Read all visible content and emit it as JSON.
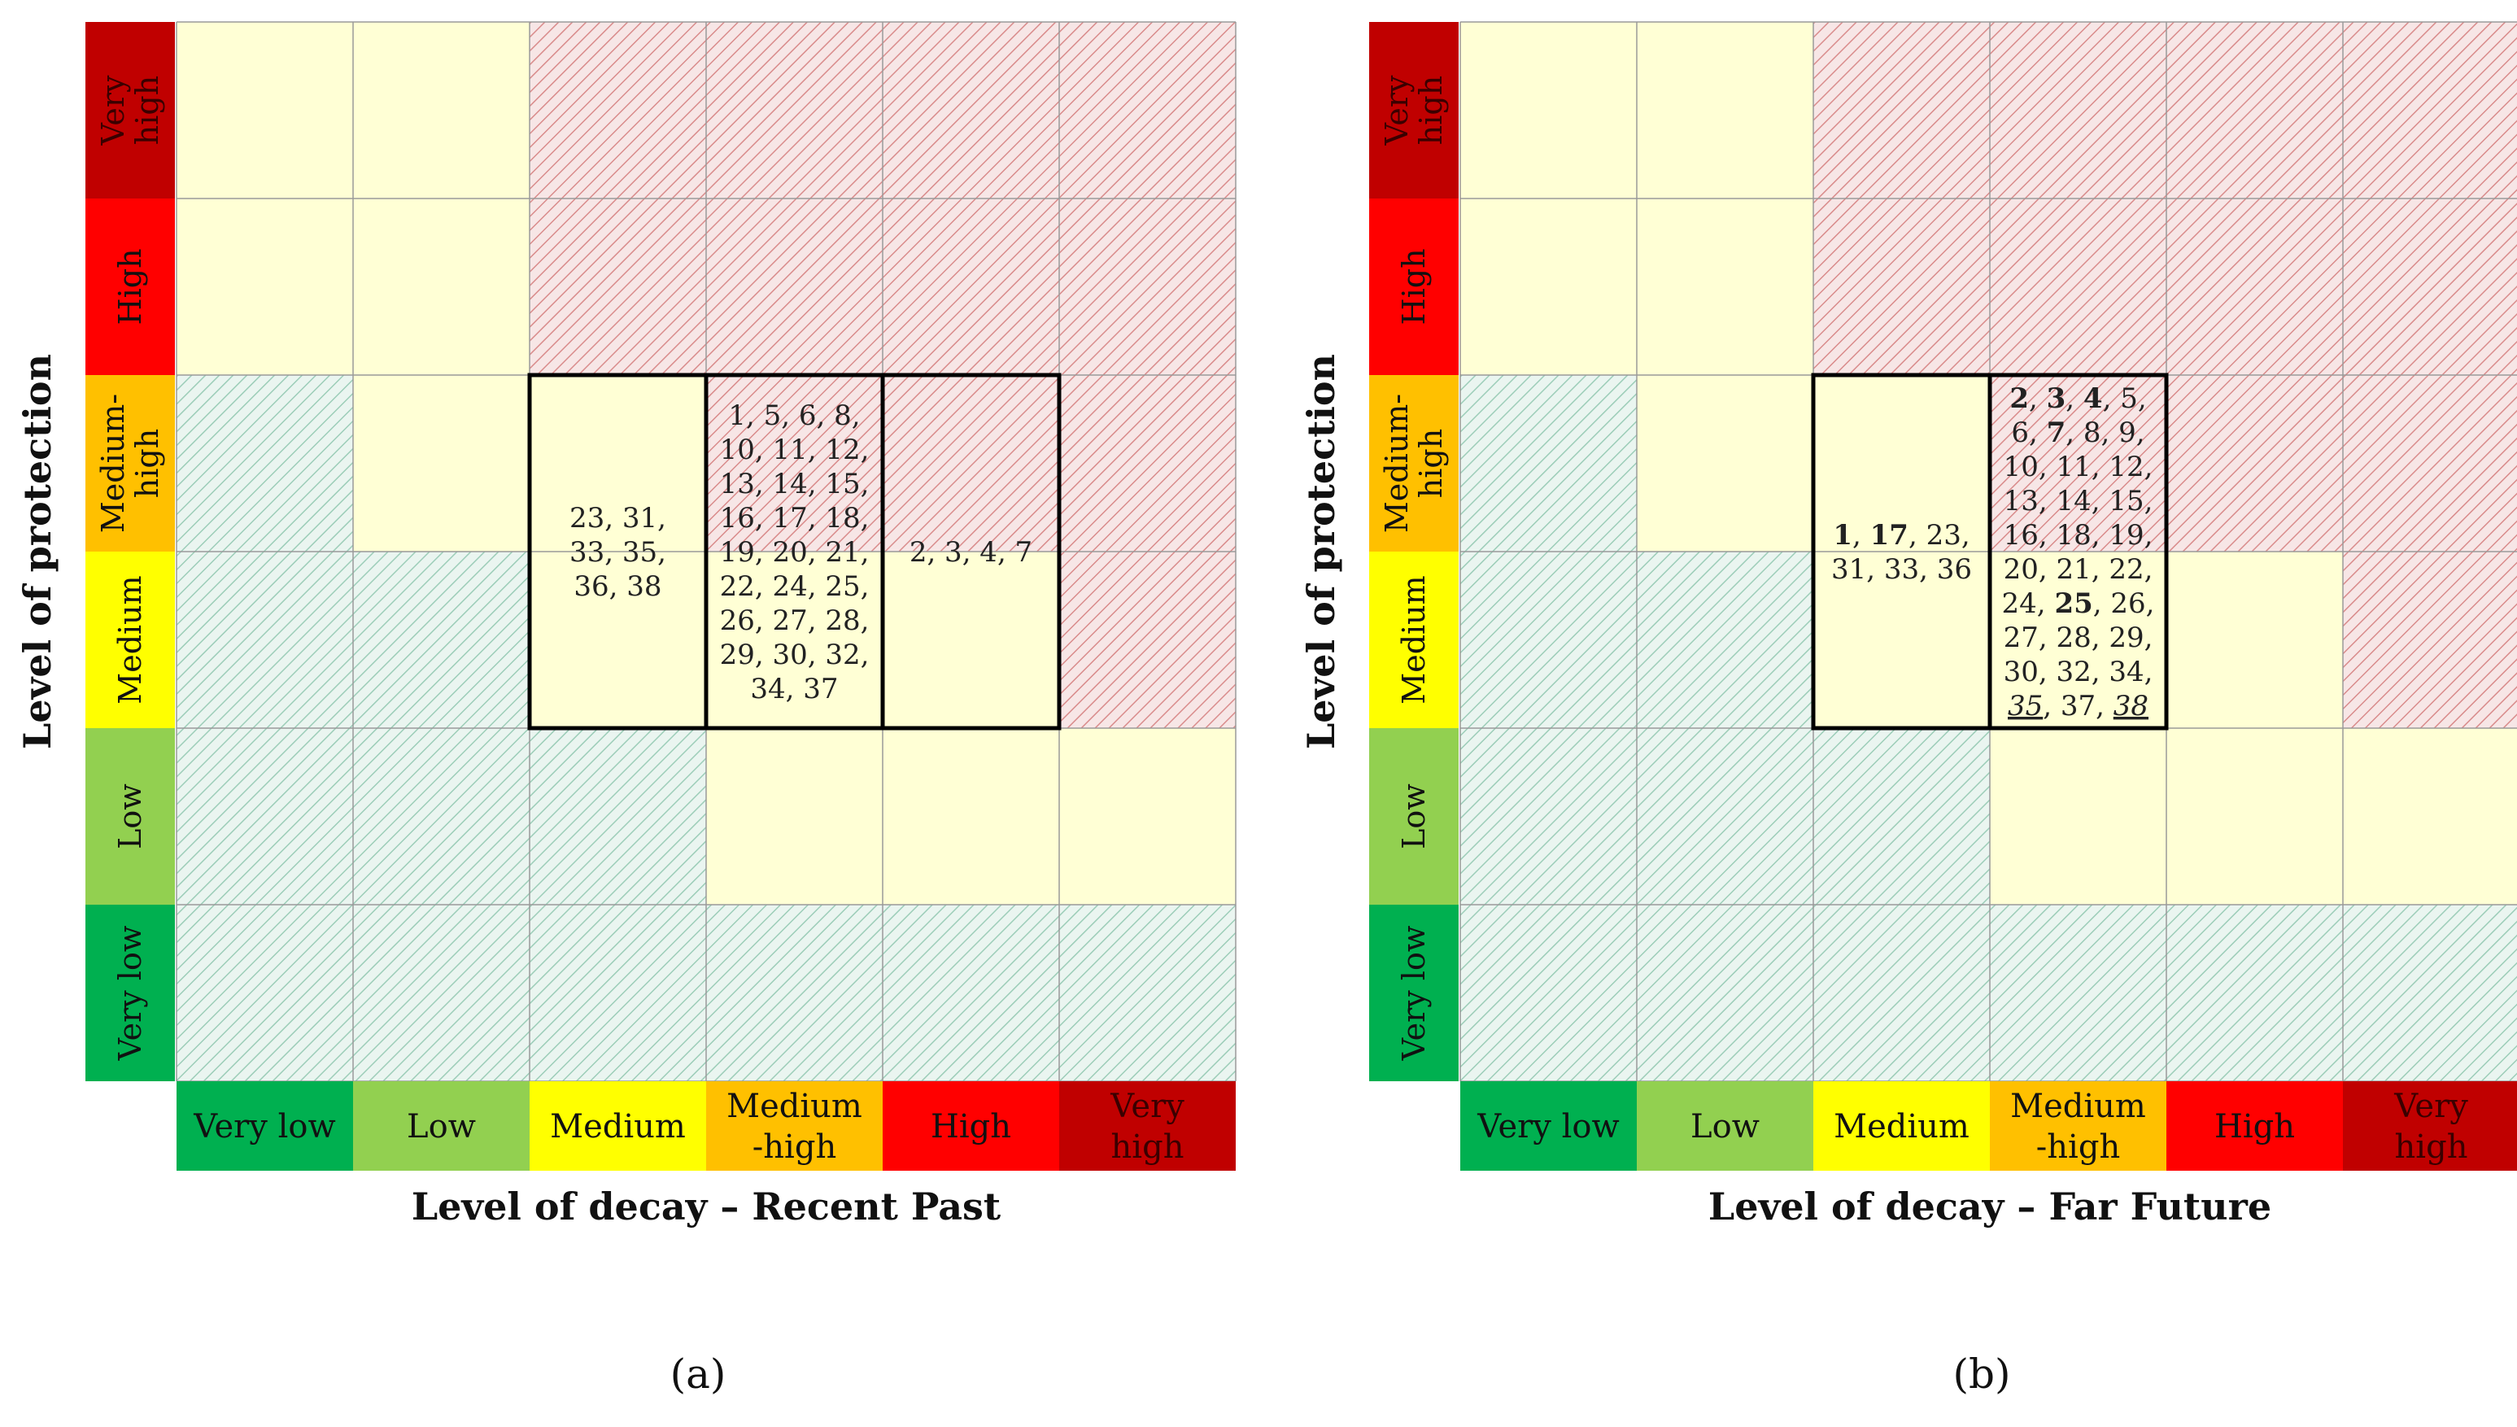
{
  "colors": {
    "very_low": "#00b050",
    "low": "#92d050",
    "medium": "#ffff00",
    "medium_high": "#ffc000",
    "high": "#ff0000",
    "very_high": "#c00000",
    "cream": "#ffffd5",
    "pink": "#f4dada",
    "teal": "#dcefe8"
  },
  "row_labels": [
    "Very high",
    "High",
    "Medium-high",
    "Medium",
    "Low",
    "Very low"
  ],
  "chart_data": [
    {
      "type": "heatmap",
      "panel_label": "(a)",
      "xlabel": "Level of decay – Recent Past",
      "ylabel": "Level of protection",
      "x_categories": [
        "Very low",
        "Low",
        "Medium",
        "Medium-high",
        "High",
        "Very high"
      ],
      "y_categories": [
        "Very low",
        "Low",
        "Medium",
        "Medium-high",
        "High",
        "Very high"
      ],
      "x_tick_lines": [
        [
          "Very low"
        ],
        [
          "Low"
        ],
        [
          "Medium"
        ],
        [
          "Medium",
          "-high"
        ],
        [
          "High"
        ],
        [
          "Very",
          "high"
        ]
      ],
      "y_tick_lines": [
        [
          "Very",
          "high"
        ],
        [
          "High"
        ],
        [
          "Medium-",
          "high"
        ],
        [
          "Medium"
        ],
        [
          "Low"
        ],
        [
          "Very low"
        ]
      ],
      "zones_top_to_bottom": [
        [
          "cream",
          "cream",
          "pink",
          "pink",
          "pink",
          "pink"
        ],
        [
          "cream",
          "cream",
          "pink",
          "pink",
          "pink",
          "pink"
        ],
        [
          "teal",
          "cream",
          "cream",
          "pink",
          "pink",
          "pink"
        ],
        [
          "teal",
          "teal",
          "cream",
          "cream",
          "cream",
          "pink"
        ],
        [
          "teal",
          "teal",
          "teal",
          "cream",
          "cream",
          "cream"
        ],
        [
          "teal",
          "teal",
          "teal",
          "teal",
          "teal",
          "teal"
        ]
      ],
      "groups": [
        {
          "decay": "Medium",
          "protection": "Medium to Medium-high",
          "lines": [
            [
              {
                "t": "23, 31,"
              }
            ],
            [
              {
                "t": "33, 35,"
              }
            ],
            [
              {
                "t": "36, 38"
              }
            ]
          ]
        },
        {
          "decay": "Medium-high",
          "protection": "Medium to Medium-high",
          "lines": [
            [
              {
                "t": "1, 5, 6, 8,"
              }
            ],
            [
              {
                "t": "10, 11, 12,"
              }
            ],
            [
              {
                "t": "13, 14, 15,"
              }
            ],
            [
              {
                "t": "16, 17, 18,"
              }
            ],
            [
              {
                "t": "19, 20, 21,"
              }
            ],
            [
              {
                "t": "22, 24, 25,"
              }
            ],
            [
              {
                "t": "26, 27, 28,"
              }
            ],
            [
              {
                "t": "29, 30, 32,"
              }
            ],
            [
              {
                "t": "34, 37"
              }
            ]
          ]
        },
        {
          "decay": "High",
          "protection": "Medium to Medium-high",
          "lines": [
            [
              {
                "t": "2, 3, 4, 7"
              }
            ]
          ]
        }
      ]
    },
    {
      "type": "heatmap",
      "panel_label": "(b)",
      "xlabel": "Level of decay – Far Future",
      "ylabel": "Level of protection",
      "x_categories": [
        "Very low",
        "Low",
        "Medium",
        "Medium-high",
        "High",
        "Very high"
      ],
      "y_categories": [
        "Very low",
        "Low",
        "Medium",
        "Medium-high",
        "High",
        "Very high"
      ],
      "x_tick_lines": [
        [
          "Very low"
        ],
        [
          "Low"
        ],
        [
          "Medium"
        ],
        [
          "Medium",
          "-high"
        ],
        [
          "High"
        ],
        [
          "Very",
          "high"
        ]
      ],
      "y_tick_lines": [
        [
          "Very",
          "high"
        ],
        [
          "High"
        ],
        [
          "Medium-",
          "high"
        ],
        [
          "Medium"
        ],
        [
          "Low"
        ],
        [
          "Very low"
        ]
      ],
      "zones_top_to_bottom": [
        [
          "cream",
          "cream",
          "pink",
          "pink",
          "pink",
          "pink"
        ],
        [
          "cream",
          "cream",
          "pink",
          "pink",
          "pink",
          "pink"
        ],
        [
          "teal",
          "cream",
          "cream",
          "pink",
          "pink",
          "pink"
        ],
        [
          "teal",
          "teal",
          "cream",
          "cream",
          "cream",
          "pink"
        ],
        [
          "teal",
          "teal",
          "teal",
          "cream",
          "cream",
          "cream"
        ],
        [
          "teal",
          "teal",
          "teal",
          "teal",
          "teal",
          "teal"
        ]
      ],
      "groups": [
        {
          "decay": "Medium",
          "protection": "Medium to Medium-high",
          "lines": [
            [
              {
                "t": "1",
                "b": true
              },
              {
                "t": ", "
              },
              {
                "t": "17",
                "b": true
              },
              {
                "t": ", 23,"
              }
            ],
            [
              {
                "t": "31, 33, 36"
              }
            ]
          ]
        },
        {
          "decay": "Medium-high",
          "protection": "Medium to Medium-high",
          "lines": [
            [
              {
                "t": "2",
                "b": true
              },
              {
                "t": ", "
              },
              {
                "t": "3",
                "b": true
              },
              {
                "t": ", "
              },
              {
                "t": "4",
                "b": true
              },
              {
                "t": ", 5,"
              }
            ],
            [
              {
                "t": "6, "
              },
              {
                "t": "7",
                "b": true
              },
              {
                "t": ", 8, 9,"
              }
            ],
            [
              {
                "t": "10, 11, 12,"
              }
            ],
            [
              {
                "t": "13, 14, 15,"
              }
            ],
            [
              {
                "t": "16, 18, 19,"
              }
            ],
            [
              {
                "t": "20, 21, 22,"
              }
            ],
            [
              {
                "t": "24, "
              },
              {
                "t": "25",
                "b": true
              },
              {
                "t": ", 26,"
              }
            ],
            [
              {
                "t": "27, 28, 29,"
              }
            ],
            [
              {
                "t": "30, 32, 34,"
              }
            ],
            [
              {
                "t": "35",
                "u": true
              },
              {
                "t": ", 37, "
              },
              {
                "t": "38",
                "u": true
              }
            ]
          ]
        }
      ]
    }
  ]
}
